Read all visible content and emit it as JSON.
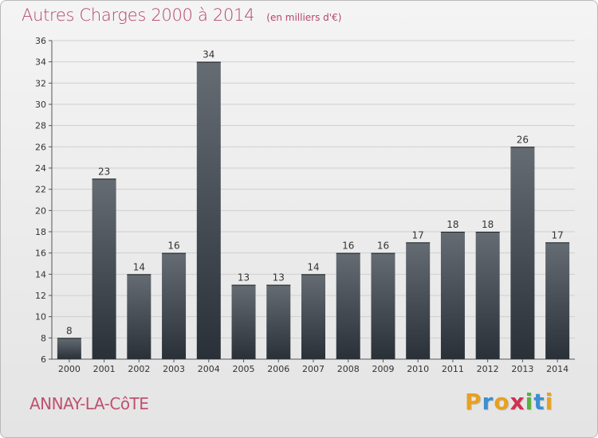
{
  "header": {
    "title": "Autres Charges 2000 à 2014",
    "subtitle": "(en milliers d'€)"
  },
  "footer": {
    "commune": "ANNAY-LA-CôTE",
    "brand_letters": [
      "P",
      "r",
      "o",
      "x",
      "i",
      "t",
      "i"
    ],
    "brand_colors": [
      "#e8a020",
      "#3a8fd0",
      "#e8a020",
      "#d03050",
      "#5ab040",
      "#3a8fd0",
      "#e8a020"
    ]
  },
  "colors": {
    "bar_top": "#656c73",
    "bar_bottom": "#2a3038",
    "title": "#b5476a",
    "commune": "#c05070"
  },
  "chart_data": {
    "type": "bar",
    "title": "Autres Charges 2000 à 2014",
    "subtitle": "(en milliers d'€)",
    "categories": [
      "2000",
      "2001",
      "2002",
      "2003",
      "2004",
      "2005",
      "2006",
      "2007",
      "2008",
      "2009",
      "2010",
      "2011",
      "2012",
      "2013",
      "2014"
    ],
    "values": [
      8,
      23,
      14,
      16,
      34,
      13,
      13,
      14,
      16,
      16,
      17,
      18,
      18,
      26,
      17
    ],
    "ylim": [
      6,
      36
    ],
    "yticks": [
      6,
      8,
      10,
      12,
      14,
      16,
      18,
      20,
      22,
      24,
      26,
      28,
      30,
      32,
      34,
      36
    ],
    "grid": true,
    "data_labels": true
  }
}
